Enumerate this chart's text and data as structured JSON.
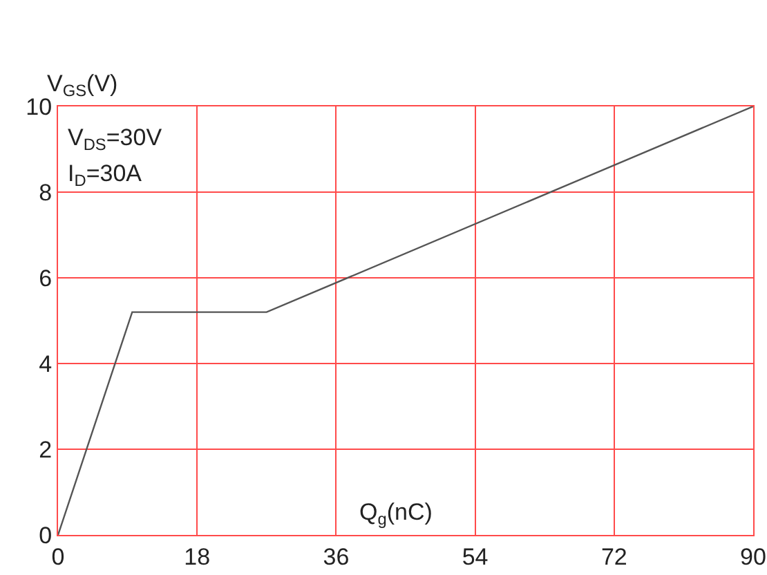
{
  "chart_data": {
    "type": "line",
    "xlabel": "Q$_{g}$(nC)",
    "ylabel": "V$_{GS}$(V)",
    "annotations": [
      "V$_{DS}$=30V",
      "I$_{D}$=30A"
    ],
    "x": [
      0,
      9.6,
      27,
      90
    ],
    "series": [
      {
        "color": "#555555",
        "values": [
          0,
          5.2,
          5.2,
          10
        ]
      }
    ],
    "xlim": [
      0,
      90
    ],
    "xticks": [
      0,
      18,
      36,
      54,
      72,
      90
    ],
    "ylim": [
      0,
      10
    ],
    "yticks": [
      0,
      2,
      4,
      6,
      8,
      10
    ],
    "grid": true,
    "marker": "none",
    "line_style": "solid"
  }
}
